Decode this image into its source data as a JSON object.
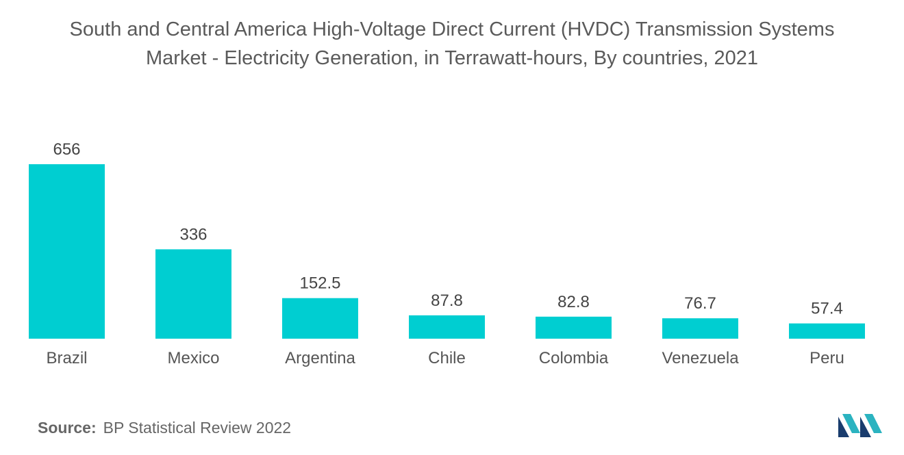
{
  "colors": {
    "bar": "#00CED1",
    "text": "#555555",
    "logo_dark": "#1a3d6e",
    "logo_light": "#2bb3c0"
  },
  "title": {
    "line1": "South and Central America High-Voltage Direct Current (HVDC) Transmission Systems",
    "line2": "Market - Electricity Generation, in Terrawatt-hours, By countries, 2021"
  },
  "source": {
    "label": "Source:",
    "text": "BP Statistical Review 2022"
  },
  "logo": {
    "icon": "mordor-intelligence-logo-icon"
  },
  "chart_data": {
    "type": "bar",
    "categories": [
      "Brazil",
      "Mexico",
      "Argentina",
      "Chile",
      "Colombia",
      "Venezuela",
      "Peru"
    ],
    "values": [
      656,
      336,
      152.5,
      87.8,
      82.8,
      76.7,
      57.4
    ],
    "value_labels": [
      "656",
      "336",
      "152.5",
      "87.8",
      "82.8",
      "76.7",
      "57.4"
    ],
    "title": "South and Central America High-Voltage Direct Current (HVDC) Transmission Systems Market - Electricity Generation, in Terrawatt-hours, By countries, 2021",
    "xlabel": "",
    "ylabel": "",
    "grid": false,
    "legend": "none"
  }
}
